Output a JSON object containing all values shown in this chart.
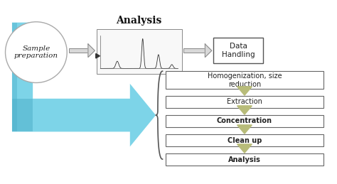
{
  "title": "Analysis",
  "circle_label": "Sample\npreparation",
  "data_handling_label": "Data\nHandling",
  "steps": [
    "Homogenization, size\nreduction",
    "Extraction",
    "Concentration",
    "Clean up",
    "Analysis"
  ],
  "bg_color": "#ffffff",
  "circle_color": "#ffffff",
  "circle_edge": "#aaaaaa",
  "box_color": "#ffffff",
  "box_edge": "#555555",
  "arrow_color": "#b8bc7a",
  "blue_arrow_color_light": "#7dd4e8",
  "blue_arrow_color_dark": "#4aaec8",
  "hollow_arrow_color": "#d8d8d8",
  "hollow_arrow_edge": "#888888",
  "title_fontsize": 10,
  "step_fontsize": 7.0,
  "label_fontsize": 7.5
}
